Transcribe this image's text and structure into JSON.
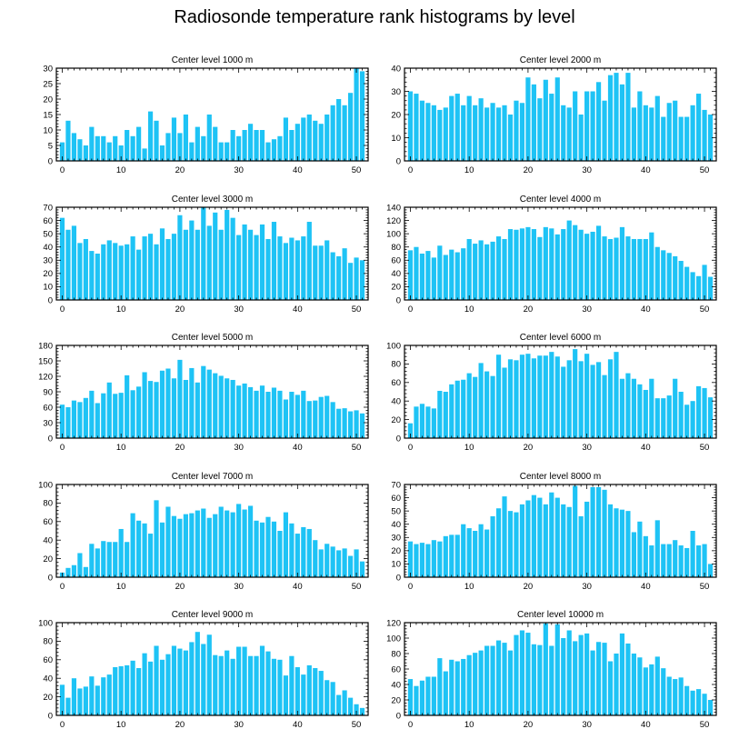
{
  "figure_title": "Radiosonde temperature rank histograms by level",
  "colors": {
    "bar": "#1ec3f5",
    "axis": "#000000",
    "background": "#ffffff"
  },
  "chart_data": [
    {
      "type": "bar",
      "title": "Center level 1000 m",
      "xlabel": "",
      "ylabel": "",
      "xlim": [
        -1,
        52
      ],
      "ylim": [
        0,
        30
      ],
      "xticks": [
        0,
        10,
        20,
        30,
        40,
        50
      ],
      "yticks": [
        0,
        5,
        10,
        15,
        20,
        25,
        30
      ],
      "values": [
        6,
        13,
        9,
        7,
        5,
        11,
        8,
        8,
        6,
        8,
        5,
        10,
        8,
        11,
        4,
        16,
        13,
        5,
        9,
        14,
        9,
        15,
        6,
        11,
        8,
        15,
        11,
        6,
        6,
        10,
        8,
        10,
        12,
        10,
        10,
        6,
        7,
        8,
        14,
        10,
        12,
        14,
        15,
        13,
        12,
        15,
        18,
        20,
        18,
        22,
        30,
        29
      ]
    },
    {
      "type": "bar",
      "title": "Center level 2000 m",
      "xlabel": "",
      "ylabel": "",
      "xlim": [
        -1,
        52
      ],
      "ylim": [
        0,
        40
      ],
      "xticks": [
        0,
        10,
        20,
        30,
        40,
        50
      ],
      "yticks": [
        0,
        10,
        20,
        30,
        40
      ],
      "values": [
        30,
        29,
        26,
        25,
        24,
        22,
        23,
        28,
        29,
        24,
        28,
        24,
        27,
        23,
        25,
        23,
        24,
        20,
        26,
        25,
        36,
        33,
        27,
        35,
        29,
        36,
        24,
        23,
        30,
        20,
        30,
        30,
        34,
        26,
        37,
        38,
        33,
        38,
        23,
        30,
        24,
        23,
        28,
        19,
        25,
        26,
        19,
        19,
        24,
        29,
        22,
        20
      ]
    },
    {
      "type": "bar",
      "title": "Center level 3000 m",
      "xlabel": "",
      "ylabel": "",
      "xlim": [
        -1,
        52
      ],
      "ylim": [
        0,
        70
      ],
      "xticks": [
        0,
        10,
        20,
        30,
        40,
        50
      ],
      "yticks": [
        0,
        10,
        20,
        30,
        40,
        50,
        60,
        70
      ],
      "values": [
        62,
        53,
        56,
        43,
        46,
        37,
        35,
        42,
        45,
        43,
        41,
        42,
        48,
        38,
        48,
        50,
        42,
        54,
        46,
        50,
        64,
        53,
        60,
        53,
        70,
        56,
        66,
        53,
        68,
        62,
        49,
        57,
        53,
        49,
        57,
        46,
        59,
        48,
        43,
        47,
        45,
        48,
        59,
        41,
        41,
        45,
        36,
        33,
        39,
        28,
        32,
        30
      ]
    },
    {
      "type": "bar",
      "title": "Center level 4000 m",
      "xlabel": "",
      "ylabel": "",
      "xlim": [
        -1,
        52
      ],
      "ylim": [
        0,
        140
      ],
      "xticks": [
        0,
        10,
        20,
        30,
        40,
        50
      ],
      "yticks": [
        0,
        20,
        40,
        60,
        80,
        100,
        120,
        140
      ],
      "values": [
        75,
        80,
        70,
        74,
        64,
        82,
        68,
        76,
        72,
        78,
        92,
        85,
        90,
        84,
        88,
        96,
        92,
        107,
        106,
        108,
        110,
        107,
        95,
        110,
        108,
        99,
        107,
        120,
        113,
        106,
        100,
        103,
        112,
        96,
        92,
        94,
        110,
        96,
        92,
        92,
        92,
        102,
        80,
        75,
        71,
        66,
        59,
        50,
        42,
        36,
        53,
        35
      ]
    },
    {
      "type": "bar",
      "title": "Center level 5000 m",
      "xlabel": "",
      "ylabel": "",
      "xlim": [
        -1,
        52
      ],
      "ylim": [
        0,
        180
      ],
      "xticks": [
        0,
        10,
        20,
        30,
        40,
        50
      ],
      "yticks": [
        0,
        30,
        60,
        90,
        120,
        150,
        180
      ],
      "values": [
        65,
        60,
        73,
        70,
        78,
        92,
        68,
        87,
        108,
        86,
        88,
        122,
        93,
        100,
        128,
        111,
        109,
        131,
        135,
        116,
        152,
        113,
        136,
        108,
        140,
        133,
        126,
        121,
        116,
        113,
        102,
        106,
        99,
        92,
        102,
        90,
        98,
        92,
        75,
        90,
        84,
        92,
        72,
        73,
        80,
        82,
        70,
        57,
        58,
        52,
        54,
        48
      ]
    },
    {
      "type": "bar",
      "title": "Center level 6000 m",
      "xlabel": "",
      "ylabel": "",
      "xlim": [
        -1,
        52
      ],
      "ylim": [
        0,
        100
      ],
      "xticks": [
        0,
        10,
        20,
        30,
        40,
        50
      ],
      "yticks": [
        0,
        20,
        40,
        60,
        80,
        100
      ],
      "values": [
        16,
        34,
        37,
        34,
        32,
        51,
        50,
        58,
        62,
        63,
        70,
        66,
        81,
        72,
        67,
        90,
        76,
        85,
        84,
        90,
        91,
        86,
        89,
        89,
        93,
        88,
        77,
        84,
        96,
        83,
        91,
        79,
        82,
        68,
        85,
        93,
        64,
        70,
        64,
        58,
        52,
        64,
        43,
        43,
        46,
        64,
        50,
        36,
        40,
        56,
        54,
        44
      ]
    },
    {
      "type": "bar",
      "title": "Center level 7000 m",
      "xlabel": "",
      "ylabel": "",
      "xlim": [
        -1,
        52
      ],
      "ylim": [
        0,
        100
      ],
      "xticks": [
        0,
        10,
        20,
        30,
        40,
        50
      ],
      "yticks": [
        0,
        20,
        40,
        60,
        80,
        100
      ],
      "values": [
        5,
        10,
        13,
        26,
        11,
        36,
        31,
        39,
        38,
        38,
        52,
        38,
        69,
        61,
        58,
        47,
        83,
        59,
        76,
        66,
        63,
        68,
        69,
        72,
        74,
        64,
        68,
        76,
        72,
        70,
        79,
        73,
        77,
        61,
        59,
        65,
        60,
        50,
        70,
        58,
        47,
        54,
        52,
        40,
        30,
        36,
        33,
        29,
        31,
        23,
        30,
        17
      ]
    },
    {
      "type": "bar",
      "title": "Center level 8000 m",
      "xlabel": "",
      "ylabel": "",
      "xlim": [
        -1,
        52
      ],
      "ylim": [
        0,
        70
      ],
      "xticks": [
        0,
        10,
        20,
        30,
        40,
        50
      ],
      "yticks": [
        0,
        10,
        20,
        30,
        40,
        50,
        60,
        70
      ],
      "values": [
        27,
        25,
        26,
        25,
        28,
        27,
        31,
        32,
        32,
        40,
        37,
        35,
        40,
        36,
        46,
        52,
        61,
        50,
        49,
        55,
        58,
        62,
        60,
        55,
        64,
        60,
        55,
        53,
        69,
        46,
        57,
        68,
        68,
        66,
        55,
        52,
        51,
        50,
        34,
        42,
        31,
        24,
        43,
        25,
        25,
        28,
        24,
        22,
        35,
        24,
        25,
        10
      ]
    },
    {
      "type": "bar",
      "title": "Center level 9000 m",
      "xlabel": "",
      "ylabel": "",
      "xlim": [
        -1,
        52
      ],
      "ylim": [
        0,
        100
      ],
      "xticks": [
        0,
        10,
        20,
        30,
        40,
        50
      ],
      "yticks": [
        0,
        20,
        40,
        60,
        80,
        100
      ],
      "values": [
        33,
        19,
        40,
        29,
        31,
        42,
        32,
        41,
        44,
        52,
        53,
        54,
        59,
        51,
        67,
        58,
        75,
        60,
        66,
        75,
        72,
        70,
        79,
        90,
        77,
        87,
        65,
        64,
        70,
        61,
        74,
        74,
        64,
        64,
        75,
        69,
        61,
        60,
        43,
        64,
        52,
        44,
        54,
        51,
        48,
        38,
        36,
        22,
        27,
        19,
        12,
        8
      ]
    },
    {
      "type": "bar",
      "title": "Center level 10000 m",
      "xlabel": "",
      "ylabel": "",
      "xlim": [
        -1,
        52
      ],
      "ylim": [
        0,
        120
      ],
      "xticks": [
        0,
        10,
        20,
        30,
        40,
        50
      ],
      "yticks": [
        0,
        20,
        40,
        60,
        80,
        100,
        120
      ],
      "values": [
        47,
        38,
        45,
        50,
        50,
        74,
        57,
        72,
        70,
        73,
        78,
        81,
        84,
        90,
        90,
        97,
        94,
        84,
        104,
        110,
        107,
        92,
        91,
        119,
        90,
        118,
        100,
        110,
        96,
        104,
        106,
        84,
        95,
        94,
        70,
        80,
        106,
        93,
        80,
        75,
        62,
        66,
        76,
        61,
        50,
        47,
        49,
        38,
        32,
        34,
        28,
        20
      ]
    }
  ]
}
